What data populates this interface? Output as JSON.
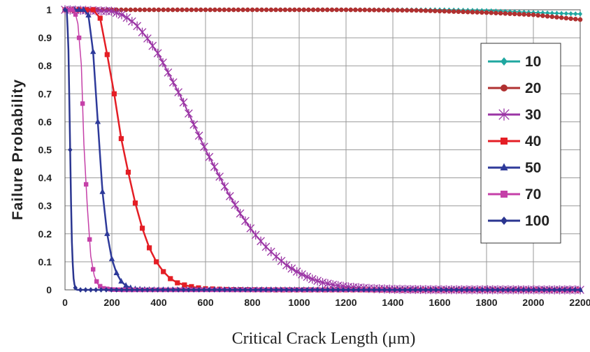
{
  "chart_data": {
    "type": "line",
    "xlabel": "Critical Crack Length (μm)",
    "ylabel": "Failure Probability",
    "xlim": [
      0,
      2200
    ],
    "ylim": [
      0,
      1
    ],
    "xticks": [
      0,
      200,
      400,
      600,
      800,
      1000,
      1200,
      1400,
      1600,
      1800,
      2000,
      2200
    ],
    "yticks": [
      0,
      0.1,
      0.2,
      0.3,
      0.4,
      0.5,
      0.6,
      0.7,
      0.8,
      0.9,
      1
    ],
    "ytick_labels": [
      "0",
      "0.1",
      "0.2",
      "0.3",
      "0.4",
      "0.5",
      "0.6",
      "0.7",
      "0.8",
      "0.9",
      "1"
    ],
    "grid": true,
    "legend_position": "right",
    "series": [
      {
        "name": "10",
        "color": "#1fa7a0",
        "marker": "diamond",
        "points": [
          [
            0,
            1
          ],
          [
            400,
            1
          ],
          [
            800,
            1
          ],
          [
            1200,
            1
          ],
          [
            1600,
            1
          ],
          [
            1800,
            0.997
          ],
          [
            2000,
            0.99
          ],
          [
            2200,
            0.985
          ]
        ]
      },
      {
        "name": "20",
        "color": "#b03030",
        "marker": "circle",
        "points": [
          [
            0,
            1
          ],
          [
            400,
            1
          ],
          [
            800,
            1
          ],
          [
            1200,
            1
          ],
          [
            1500,
            0.998
          ],
          [
            1800,
            0.99
          ],
          [
            2000,
            0.982
          ],
          [
            2200,
            0.965
          ]
        ]
      },
      {
        "name": "30",
        "color": "#9b35a5",
        "marker": "asterisk",
        "points": [
          [
            0,
            1
          ],
          [
            200,
            0.995
          ],
          [
            250,
            0.98
          ],
          [
            300,
            0.95
          ],
          [
            350,
            0.9
          ],
          [
            400,
            0.84
          ],
          [
            450,
            0.76
          ],
          [
            500,
            0.68
          ],
          [
            550,
            0.59
          ],
          [
            600,
            0.5
          ],
          [
            650,
            0.42
          ],
          [
            700,
            0.34
          ],
          [
            750,
            0.27
          ],
          [
            800,
            0.21
          ],
          [
            850,
            0.16
          ],
          [
            900,
            0.12
          ],
          [
            950,
            0.085
          ],
          [
            1000,
            0.06
          ],
          [
            1050,
            0.04
          ],
          [
            1100,
            0.026
          ],
          [
            1150,
            0.017
          ],
          [
            1200,
            0.011
          ],
          [
            1300,
            0.005
          ],
          [
            1400,
            0.002
          ],
          [
            1600,
            0.0005
          ],
          [
            2200,
            0
          ]
        ]
      },
      {
        "name": "40",
        "color": "#e41e25",
        "marker": "square",
        "points": [
          [
            0,
            1
          ],
          [
            120,
            1
          ],
          [
            150,
            0.97
          ],
          [
            180,
            0.84
          ],
          [
            210,
            0.7
          ],
          [
            240,
            0.54
          ],
          [
            270,
            0.42
          ],
          [
            300,
            0.31
          ],
          [
            330,
            0.22
          ],
          [
            360,
            0.15
          ],
          [
            390,
            0.1
          ],
          [
            420,
            0.065
          ],
          [
            450,
            0.04
          ],
          [
            480,
            0.025
          ],
          [
            520,
            0.015
          ],
          [
            560,
            0.008
          ],
          [
            600,
            0.004
          ],
          [
            700,
            0.001
          ],
          [
            900,
            0
          ],
          [
            2200,
            0
          ]
        ]
      },
      {
        "name": "50",
        "color": "#2e3a9a",
        "marker": "triangle",
        "points": [
          [
            0,
            1
          ],
          [
            80,
            1
          ],
          [
            100,
            0.98
          ],
          [
            120,
            0.85
          ],
          [
            140,
            0.6
          ],
          [
            160,
            0.35
          ],
          [
            180,
            0.2
          ],
          [
            200,
            0.11
          ],
          [
            220,
            0.06
          ],
          [
            240,
            0.03
          ],
          [
            260,
            0.015
          ],
          [
            280,
            0.007
          ],
          [
            300,
            0.003
          ],
          [
            350,
            0.0005
          ],
          [
            400,
            0
          ],
          [
            2200,
            0
          ]
        ]
      },
      {
        "name": "70",
        "color": "#c540a8",
        "marker": "square",
        "points": [
          [
            0,
            1
          ],
          [
            40,
            1
          ],
          [
            55,
            0.95
          ],
          [
            70,
            0.8
          ],
          [
            80,
            0.53
          ],
          [
            95,
            0.3
          ],
          [
            110,
            0.12
          ],
          [
            125,
            0.05
          ],
          [
            140,
            0.02
          ],
          [
            160,
            0.006
          ],
          [
            200,
            0.001
          ],
          [
            250,
            0
          ],
          [
            2200,
            0
          ]
        ]
      },
      {
        "name": "100",
        "color": "#2a3590",
        "marker": "diamond",
        "points": [
          [
            0,
            1
          ],
          [
            8,
            1
          ],
          [
            15,
            0.85
          ],
          [
            22,
            0.5
          ],
          [
            28,
            0.2
          ],
          [
            35,
            0.05
          ],
          [
            42,
            0.01
          ],
          [
            50,
            0
          ],
          [
            2200,
            0
          ]
        ]
      }
    ]
  }
}
